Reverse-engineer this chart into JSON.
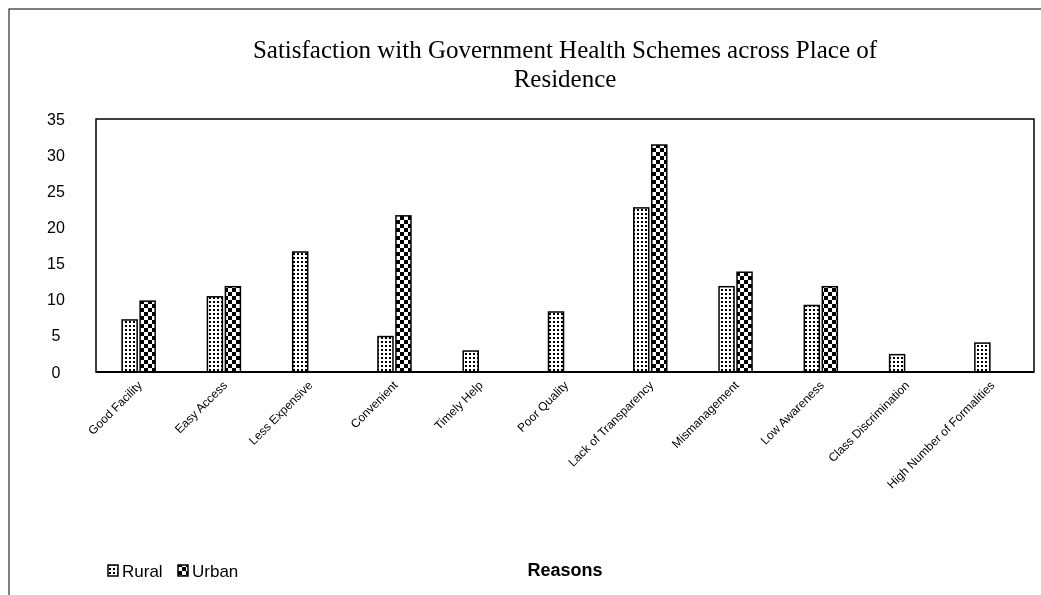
{
  "chart_data": {
    "type": "bar",
    "title": "Satisfaction with Government Health Schemes across Place of Residence",
    "xlabel": "Reasons",
    "categories": [
      "Good Facility",
      "Easy Access",
      "Less Expensive",
      "Convenient",
      "Timely Help",
      "Poor Quality",
      "Lack of Transparency",
      "Mismanagement",
      "Low Awareness",
      "Class Discrimination",
      "High Number of Formalities"
    ],
    "series": [
      {
        "name": "Rural",
        "color": "#000000",
        "values": [
          7.2,
          10.4,
          16.6,
          4.9,
          2.9,
          8.3,
          22.7,
          11.8,
          9.2,
          2.4,
          4.0
        ]
      },
      {
        "name": "Urban",
        "color": "#000000",
        "values": [
          9.8,
          11.8,
          null,
          21.6,
          null,
          null,
          31.4,
          13.8,
          11.8,
          null,
          null
        ]
      }
    ],
    "ylim": [
      0,
      35
    ],
    "yticks": [
      0,
      5,
      10,
      15,
      20,
      25,
      30,
      35
    ],
    "grid": false,
    "legend": "bottom left"
  }
}
